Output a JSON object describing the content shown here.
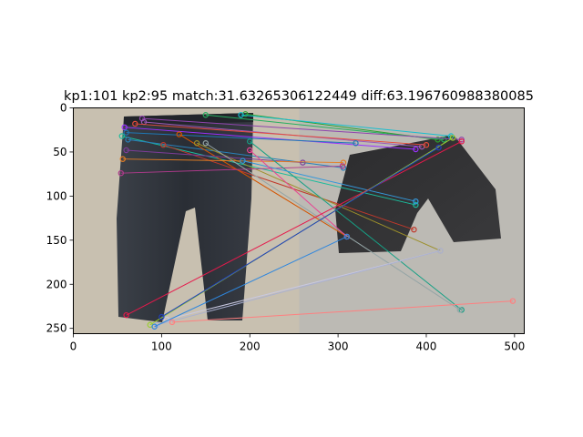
{
  "chart_data": {
    "type": "scatter",
    "title": "kp1:101 kp2:95 match:31.63265306122449 diff:63.196760988380085",
    "xlabel": "",
    "ylabel": "",
    "xlim": [
      0,
      511
    ],
    "ylim": [
      256,
      0
    ],
    "grid": false,
    "x_ticks": [
      0,
      100,
      200,
      300,
      400,
      500
    ],
    "y_ticks": [
      0,
      50,
      100,
      150,
      200,
      250
    ],
    "image": {
      "description_panels": [
        "black-jeans-on-floor",
        "black-shorts-on-carpet"
      ],
      "left_panel_x_range": [
        0,
        256
      ],
      "right_panel_x_range": [
        256,
        511
      ],
      "colors": {
        "floor_bg": "#c9c2b4",
        "carpet_bg": "#b8b6b0",
        "denim_dark": "#2a2d33",
        "denim_mid": "#3f444c"
      }
    },
    "matches": [
      {
        "from": [
          195,
          7
        ],
        "to": [
          413,
          36
        ],
        "color": "#2ca02c"
      },
      {
        "from": [
          190,
          8
        ],
        "to": [
          428,
          32
        ],
        "color": "#17becf"
      },
      {
        "from": [
          150,
          8
        ],
        "to": [
          420,
          36
        ],
        "color": "#27ae60"
      },
      {
        "from": [
          78,
          12
        ],
        "to": [
          440,
          36
        ],
        "color": "#8e44ad"
      },
      {
        "from": [
          80,
          16
        ],
        "to": [
          395,
          44
        ],
        "color": "#9b59b6"
      },
      {
        "from": [
          70,
          18
        ],
        "to": [
          400,
          42
        ],
        "color": "#e74c3c"
      },
      {
        "from": [
          58,
          22
        ],
        "to": [
          388,
          47
        ],
        "color": "#9b30ff"
      },
      {
        "from": [
          60,
          28
        ],
        "to": [
          320,
          40
        ],
        "color": "#1f77b4"
      },
      {
        "from": [
          55,
          32
        ],
        "to": [
          388,
          110
        ],
        "color": "#1abc9c"
      },
      {
        "from": [
          62,
          36
        ],
        "to": [
          306,
          68
        ],
        "color": "#2980b9"
      },
      {
        "from": [
          102,
          42
        ],
        "to": [
          386,
          138
        ],
        "color": "#c0392b"
      },
      {
        "from": [
          120,
          30
        ],
        "to": [
          310,
          146
        ],
        "color": "#d35400"
      },
      {
        "from": [
          140,
          40
        ],
        "to": [
          416,
          162
        ],
        "color": "#9c8f2a"
      },
      {
        "from": [
          60,
          48
        ],
        "to": [
          260,
          62
        ],
        "color": "#7d3c98"
      },
      {
        "from": [
          56,
          58
        ],
        "to": [
          306,
          62
        ],
        "color": "#e67e22"
      },
      {
        "from": [
          54,
          74
        ],
        "to": [
          305,
          66
        ],
        "color": "#b03a8c"
      },
      {
        "from": [
          200,
          38
        ],
        "to": [
          440,
          229
        ],
        "color": "#16a085"
      },
      {
        "from": [
          192,
          60
        ],
        "to": [
          388,
          106
        ],
        "color": "#3498db"
      },
      {
        "from": [
          150,
          40
        ],
        "to": [
          438,
          229
        ],
        "color": "#95a5a6"
      },
      {
        "from": [
          200,
          48
        ],
        "to": [
          310,
          146
        ],
        "color": "#e84393"
      },
      {
        "from": [
          60,
          235
        ],
        "to": [
          440,
          38
        ],
        "color": "#e6194b"
      },
      {
        "from": [
          87,
          246
        ],
        "to": [
          430,
          34
        ],
        "color": "#9acd32"
      },
      {
        "from": [
          100,
          237
        ],
        "to": [
          414,
          45
        ],
        "color": "#1f3fbf"
      },
      {
        "from": [
          106,
          240
        ],
        "to": [
          416,
          162
        ],
        "color": "#c8c8e0"
      },
      {
        "from": [
          95,
          246
        ],
        "to": [
          416,
          162
        ],
        "color": "#aab0d0"
      },
      {
        "from": [
          112,
          243
        ],
        "to": [
          498,
          219
        ],
        "color": "#ff7f7f"
      },
      {
        "from": [
          92,
          248
        ],
        "to": [
          310,
          146
        ],
        "color": "#2e86de"
      }
    ]
  }
}
